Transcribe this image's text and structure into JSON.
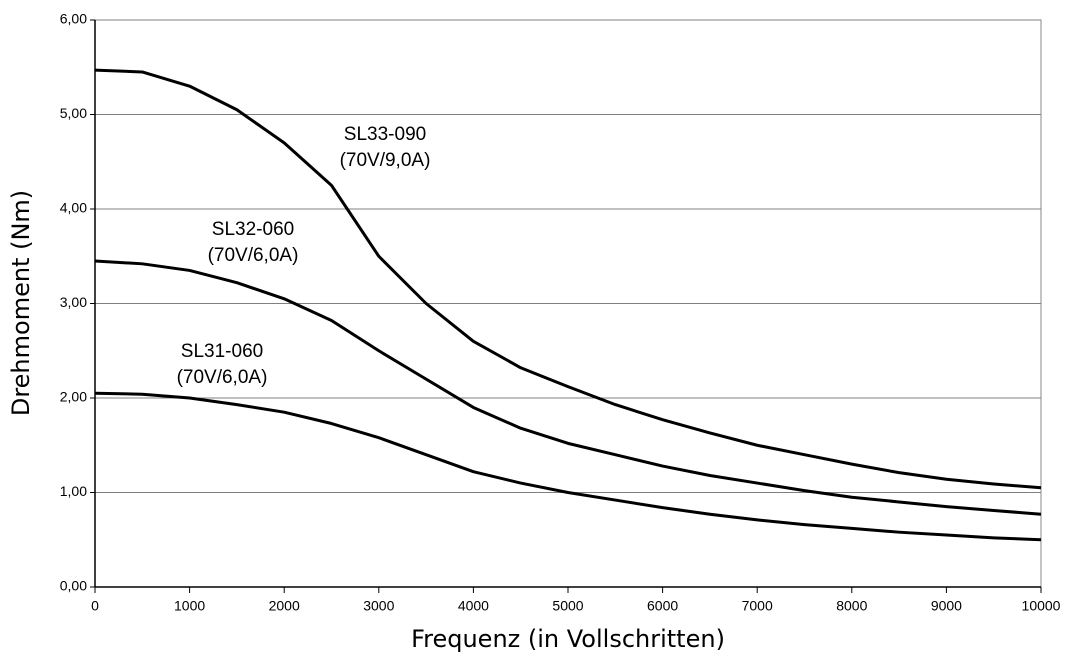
{
  "chart_data": {
    "type": "line",
    "x_label": "Frequenz (in Vollschritten)",
    "y_label": "Drehmoment (Nm)",
    "x": [
      0,
      500,
      1000,
      1500,
      2000,
      2500,
      3000,
      3500,
      4000,
      4500,
      5000,
      5500,
      6000,
      6500,
      7000,
      7500,
      8000,
      8500,
      9000,
      9500,
      10000
    ],
    "series": [
      {
        "name": "SL33-090",
        "label": "(70V/9,0A)",
        "color": "#000000",
        "values": [
          5.47,
          5.45,
          5.3,
          5.05,
          4.7,
          4.25,
          3.5,
          3.0,
          2.6,
          2.32,
          2.12,
          1.93,
          1.77,
          1.63,
          1.5,
          1.4,
          1.3,
          1.21,
          1.14,
          1.09,
          1.05
        ]
      },
      {
        "name": "SL32-060",
        "label": "(70V/6,0A)",
        "color": "#000000",
        "values": [
          3.45,
          3.42,
          3.35,
          3.22,
          3.05,
          2.82,
          2.5,
          2.2,
          1.9,
          1.68,
          1.52,
          1.4,
          1.28,
          1.18,
          1.1,
          1.02,
          0.95,
          0.9,
          0.85,
          0.81,
          0.77
        ]
      },
      {
        "name": "SL31-060",
        "label": "(70V/6,0A)",
        "color": "#000000",
        "values": [
          2.05,
          2.04,
          2.0,
          1.93,
          1.85,
          1.73,
          1.58,
          1.4,
          1.22,
          1.1,
          1.0,
          0.92,
          0.84,
          0.77,
          0.71,
          0.66,
          0.62,
          0.58,
          0.55,
          0.52,
          0.5
        ]
      }
    ],
    "xlim": [
      0,
      10000
    ],
    "xticks": [
      0,
      1000,
      2000,
      3000,
      4000,
      5000,
      6000,
      7000,
      8000,
      9000,
      10000
    ],
    "ylim": [
      0,
      6
    ],
    "yticks": [
      {
        "value": 0,
        "label": "0,00"
      },
      {
        "value": 1,
        "label": "1,00"
      },
      {
        "value": 2,
        "label": "2,00"
      },
      {
        "value": 3,
        "label": "3,00"
      },
      {
        "value": 4,
        "label": "4,00"
      },
      {
        "value": 5,
        "label": "5,00"
      },
      {
        "value": 6,
        "label": "6,00"
      }
    ],
    "grid": true
  }
}
